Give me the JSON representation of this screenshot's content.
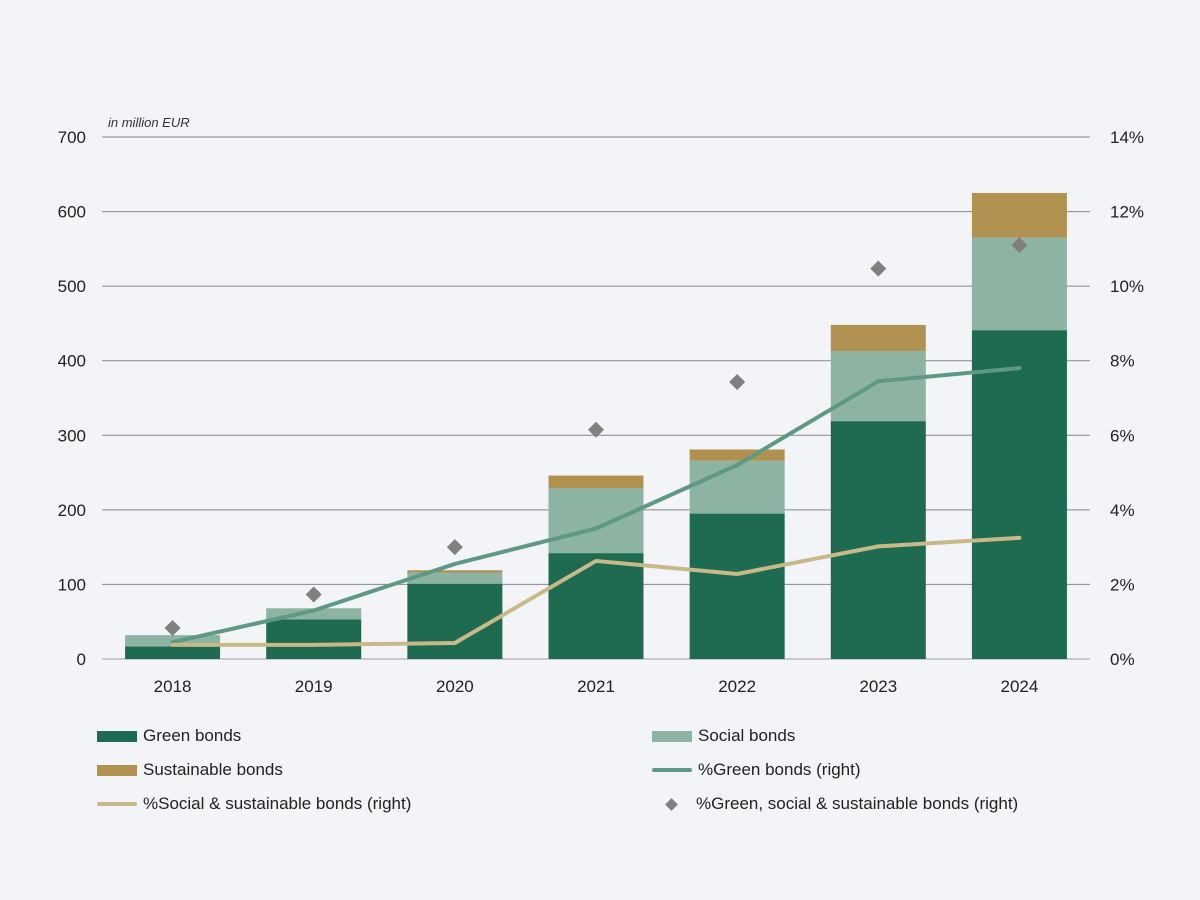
{
  "chart_data": {
    "type": "bar",
    "unit_note": "in million EUR",
    "categories": [
      "2018",
      "2019",
      "2020",
      "2021",
      "2022",
      "2023",
      "2024"
    ],
    "ylim": [
      0,
      700
    ],
    "y_ticks": [
      0,
      100,
      200,
      300,
      400,
      500,
      600,
      700
    ],
    "y2lim": [
      0,
      14
    ],
    "y2_ticks": [
      "0%",
      "2%",
      "4%",
      "6%",
      "8%",
      "10%",
      "12%",
      "14%"
    ],
    "grid": true,
    "legend_position": "bottom",
    "series": [
      {
        "name": "Green bonds",
        "kind": "bar",
        "color": "#1f6b52",
        "values": [
          17,
          53,
          101,
          142,
          195,
          319,
          441
        ]
      },
      {
        "name": "Social bonds",
        "kind": "bar",
        "color": "#8db3a3",
        "values": [
          15,
          15,
          15,
          87,
          71,
          94,
          124
        ]
      },
      {
        "name": "Sustainable bonds",
        "kind": "bar",
        "color": "#b19150",
        "values": [
          0,
          0,
          3,
          17,
          15,
          35,
          60
        ]
      },
      {
        "name": "%Green bonds (right)",
        "kind": "line",
        "color": "#5e9a83",
        "values": [
          0.45,
          1.3,
          2.55,
          3.5,
          5.2,
          7.45,
          7.8
        ]
      },
      {
        "name": "%Social & sustainable bonds (right)",
        "kind": "line",
        "color": "#c8b989",
        "values": [
          0.38,
          0.38,
          0.43,
          2.63,
          2.28,
          3.02,
          3.25
        ]
      },
      {
        "name": "%Green, social & sustainable bonds (right)",
        "kind": "marker",
        "color": "#808080",
        "values": [
          0.83,
          1.73,
          3.0,
          6.15,
          7.43,
          10.47,
          11.1
        ]
      }
    ]
  }
}
